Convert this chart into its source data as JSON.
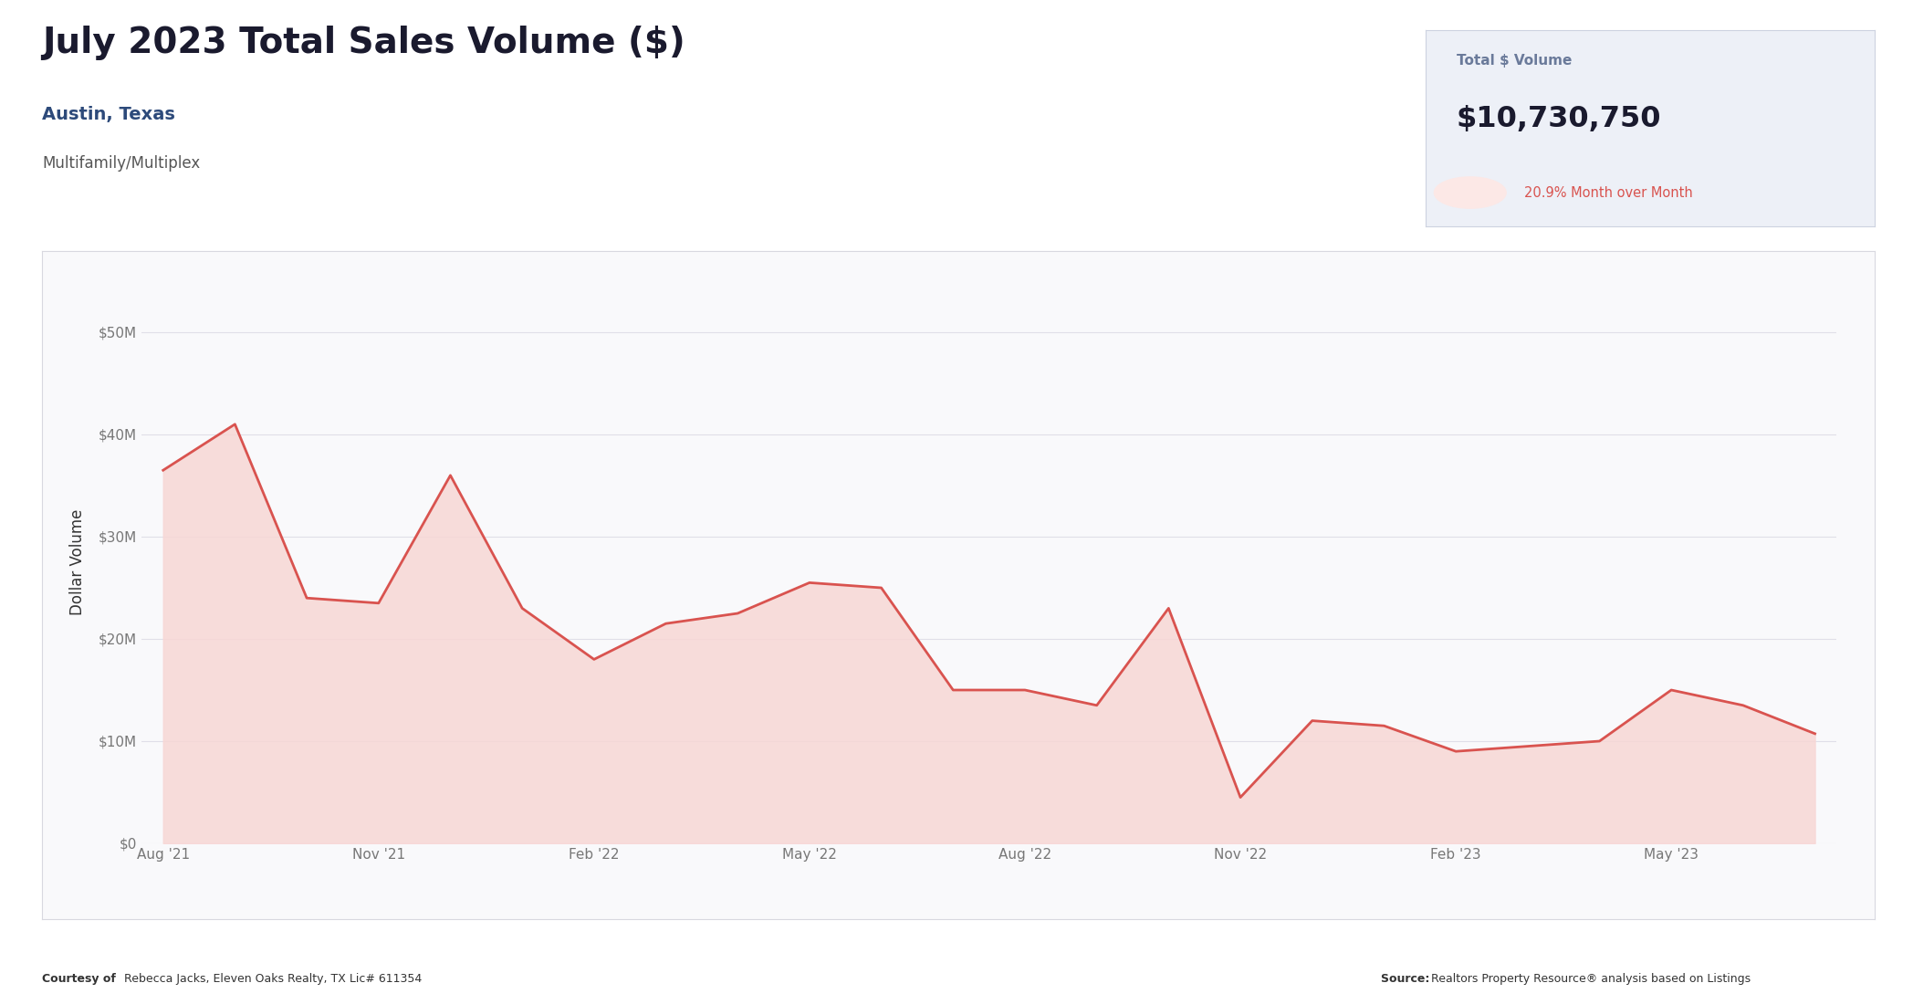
{
  "title": "July 2023 Total Sales Volume ($)",
  "subtitle1": "Austin, Texas",
  "subtitle2": "Multifamily/Multiplex",
  "total_volume_label": "Total $ Volume",
  "total_volume_value": "$10,730,750",
  "total_volume_change": "20.9% Month over Month",
  "ylabel": "Dollar Volume",
  "x_labels": [
    "Aug '21",
    "Nov '21",
    "Feb '22",
    "May '22",
    "Aug '22",
    "Nov '22",
    "Feb '23",
    "May '23"
  ],
  "months": [
    0,
    1,
    2,
    3,
    4,
    5,
    6,
    7,
    8,
    9,
    10,
    11,
    12,
    13,
    14,
    15,
    16,
    17,
    18,
    19,
    20,
    21,
    22,
    23
  ],
  "values": [
    36500000,
    41000000,
    24000000,
    23500000,
    36000000,
    23000000,
    18000000,
    21500000,
    22500000,
    25500000,
    25000000,
    15000000,
    15000000,
    13500000,
    23000000,
    4500000,
    12000000,
    11500000,
    9000000,
    9500000,
    10000000,
    15000000,
    13500000,
    10730750
  ],
  "line_color": "#d9534f",
  "fill_color": "#f7d7d5",
  "background_color": "#ffffff",
  "chart_bg": "#f9f9fb",
  "chart_border": "#d8d8e0",
  "grid_color": "#e0dfe8",
  "footer_left_bold": "Courtesy of ",
  "footer_left_normal": "Rebecca Jacks, Eleven Oaks Realty, TX Lic# 611354",
  "footer_right_bold": "Source: ",
  "footer_right_normal": "Realtors Property Resource® analysis based on Listings",
  "ylim": [
    0,
    55000000
  ],
  "yticks": [
    0,
    10000000,
    20000000,
    30000000,
    40000000,
    50000000
  ],
  "ytick_labels": [
    "$0",
    "$10M",
    "$20M",
    "$30M",
    "$40M",
    "$50M"
  ],
  "box_bg": "#edf0f7",
  "box_border": "#cdd2e0",
  "stat_label_color": "#6a7a9a",
  "stat_value_color": "#1a1a2e",
  "down_arrow_color": "#d9534f",
  "down_circle_color": "#fce8e6",
  "title_color": "#1a1a2e",
  "subtitle1_color": "#2d4a7a",
  "subtitle2_color": "#555555",
  "tick_color": "#777777",
  "ylabel_color": "#333333"
}
